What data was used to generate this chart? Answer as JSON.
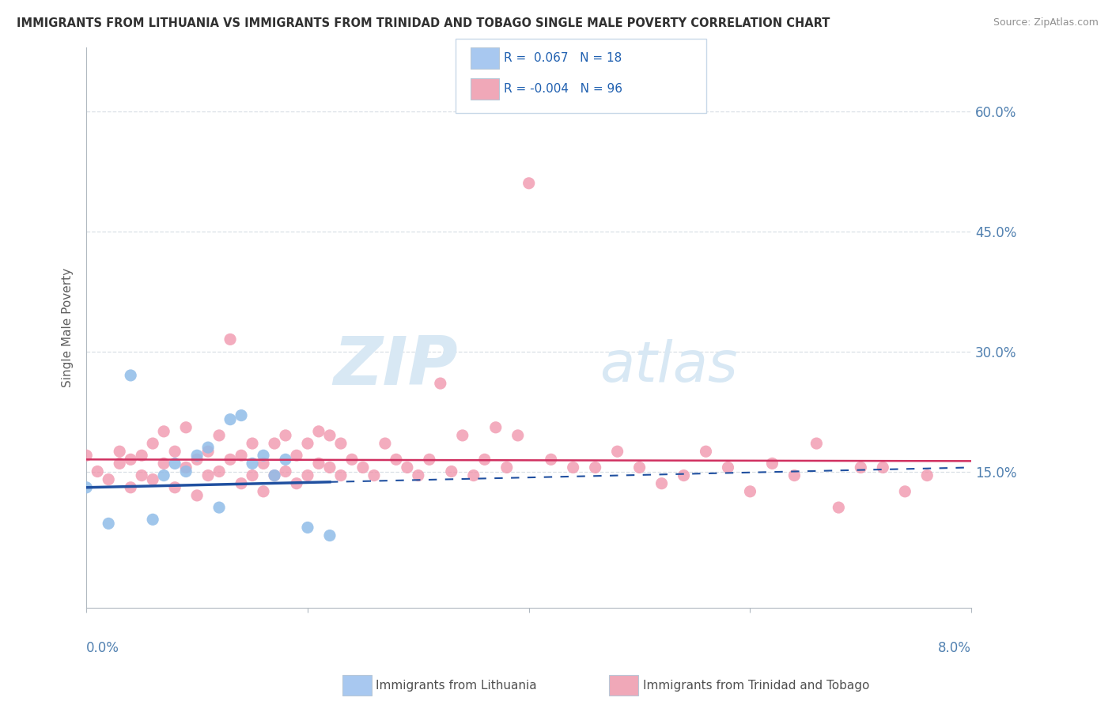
{
  "title": "IMMIGRANTS FROM LITHUANIA VS IMMIGRANTS FROM TRINIDAD AND TOBAGO SINGLE MALE POVERTY CORRELATION CHART",
  "source": "Source: ZipAtlas.com",
  "ylabel": "Single Male Poverty",
  "y_ticks": [
    0.15,
    0.3,
    0.45,
    0.6
  ],
  "x_range": [
    0.0,
    0.08
  ],
  "y_range": [
    -0.02,
    0.68
  ],
  "watermark_top": "ZIP",
  "watermark_bot": "atlas",
  "watermark_color": "#d8e8f4",
  "background_color": "#ffffff",
  "grid_color": "#d0d8e0",
  "title_color": "#303030",
  "axis_label_color": "#606060",
  "tick_color": "#5080b0",
  "legend_border_color": "#c8d8e8",
  "series_lithuania": {
    "color": "#90bce8",
    "line_color": "#2050a0",
    "x": [
      0.0,
      0.002,
      0.004,
      0.006,
      0.007,
      0.008,
      0.009,
      0.01,
      0.011,
      0.012,
      0.013,
      0.014,
      0.015,
      0.016,
      0.017,
      0.018,
      0.02,
      0.022
    ],
    "y": [
      0.13,
      0.085,
      0.27,
      0.09,
      0.145,
      0.16,
      0.15,
      0.17,
      0.18,
      0.105,
      0.215,
      0.22,
      0.16,
      0.17,
      0.145,
      0.165,
      0.08,
      0.07
    ]
  },
  "series_trinidad": {
    "color": "#f090a8",
    "line_color": "#d03060",
    "x": [
      0.0,
      0.001,
      0.002,
      0.003,
      0.003,
      0.004,
      0.004,
      0.005,
      0.005,
      0.006,
      0.006,
      0.007,
      0.007,
      0.008,
      0.008,
      0.009,
      0.009,
      0.01,
      0.01,
      0.011,
      0.011,
      0.012,
      0.012,
      0.013,
      0.013,
      0.014,
      0.014,
      0.015,
      0.015,
      0.016,
      0.016,
      0.017,
      0.017,
      0.018,
      0.018,
      0.019,
      0.019,
      0.02,
      0.02,
      0.021,
      0.021,
      0.022,
      0.022,
      0.023,
      0.023,
      0.024,
      0.025,
      0.026,
      0.027,
      0.028,
      0.029,
      0.03,
      0.031,
      0.032,
      0.033,
      0.034,
      0.035,
      0.036,
      0.037,
      0.038,
      0.039,
      0.04,
      0.042,
      0.044,
      0.046,
      0.048,
      0.05,
      0.052,
      0.054,
      0.056,
      0.058,
      0.06,
      0.062,
      0.064,
      0.066,
      0.068,
      0.07,
      0.072,
      0.074,
      0.076
    ],
    "y": [
      0.17,
      0.15,
      0.14,
      0.16,
      0.175,
      0.13,
      0.165,
      0.145,
      0.17,
      0.14,
      0.185,
      0.16,
      0.2,
      0.13,
      0.175,
      0.155,
      0.205,
      0.12,
      0.165,
      0.145,
      0.175,
      0.15,
      0.195,
      0.315,
      0.165,
      0.135,
      0.17,
      0.145,
      0.185,
      0.125,
      0.16,
      0.145,
      0.185,
      0.15,
      0.195,
      0.135,
      0.17,
      0.145,
      0.185,
      0.16,
      0.2,
      0.155,
      0.195,
      0.145,
      0.185,
      0.165,
      0.155,
      0.145,
      0.185,
      0.165,
      0.155,
      0.145,
      0.165,
      0.26,
      0.15,
      0.195,
      0.145,
      0.165,
      0.205,
      0.155,
      0.195,
      0.51,
      0.165,
      0.155,
      0.155,
      0.175,
      0.155,
      0.135,
      0.145,
      0.175,
      0.155,
      0.125,
      0.16,
      0.145,
      0.185,
      0.105,
      0.155,
      0.155,
      0.125,
      0.145
    ]
  },
  "trend_lt_y0": 0.13,
  "trend_lt_y1": 0.155,
  "trend_tt_y0": 0.165,
  "trend_tt_y1": 0.163,
  "trend_lt_solid_end": 0.022,
  "trend_lt_dashed_start": 0.022
}
